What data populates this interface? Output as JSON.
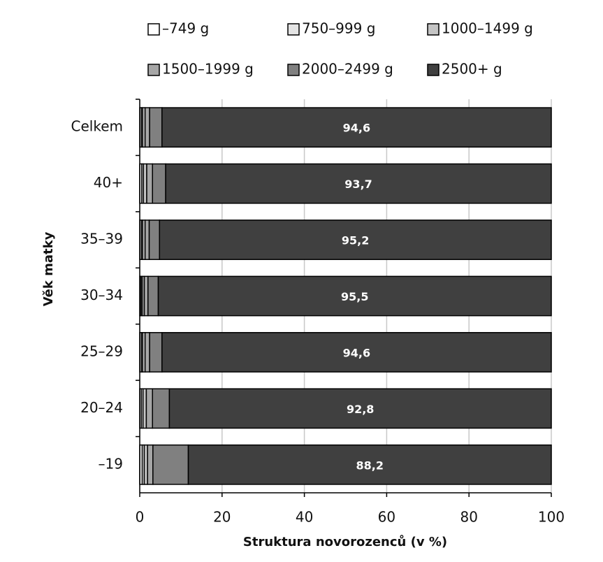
{
  "chart_data": {
    "type": "bar",
    "orientation": "horizontal",
    "stacked": true,
    "x_label": "Struktura novorozenců (v %)",
    "y_label": "Věk matky",
    "categories": [
      "Celkem",
      "40+",
      "35–39",
      "30–34",
      "25–29",
      "20–24",
      "–19"
    ],
    "series": [
      {
        "name": "–749 g",
        "color": "#ffffff",
        "values": [
          0.4,
          0.5,
          0.4,
          0.3,
          0.4,
          0.4,
          0.6
        ]
      },
      {
        "name": "750–999 g",
        "color": "#e4e4e4",
        "values": [
          0.3,
          0.4,
          0.3,
          0.3,
          0.3,
          0.4,
          0.5
        ]
      },
      {
        "name": "1000–1499 g",
        "color": "#c4c4c4",
        "values": [
          0.6,
          0.8,
          0.6,
          0.5,
          0.6,
          0.8,
          0.8
        ]
      },
      {
        "name": "1500–1999 g",
        "color": "#a6a6a6",
        "values": [
          1.1,
          1.4,
          1.0,
          0.9,
          1.1,
          1.5,
          1.3
        ]
      },
      {
        "name": "2000–2499 g",
        "color": "#808080",
        "values": [
          3.0,
          3.2,
          2.5,
          2.5,
          3.0,
          4.1,
          8.6
        ]
      },
      {
        "name": "2500+ g",
        "color": "#404040",
        "values": [
          94.6,
          93.7,
          95.2,
          95.5,
          94.6,
          92.8,
          88.2
        ],
        "value_labels": [
          "94,6",
          "93,7",
          "95,2",
          "95,5",
          "94,6",
          "92,8",
          "88,2"
        ]
      }
    ],
    "xlim": [
      0,
      100
    ],
    "xticks": [
      0,
      20,
      40,
      60,
      80,
      100
    ],
    "grid": true
  }
}
